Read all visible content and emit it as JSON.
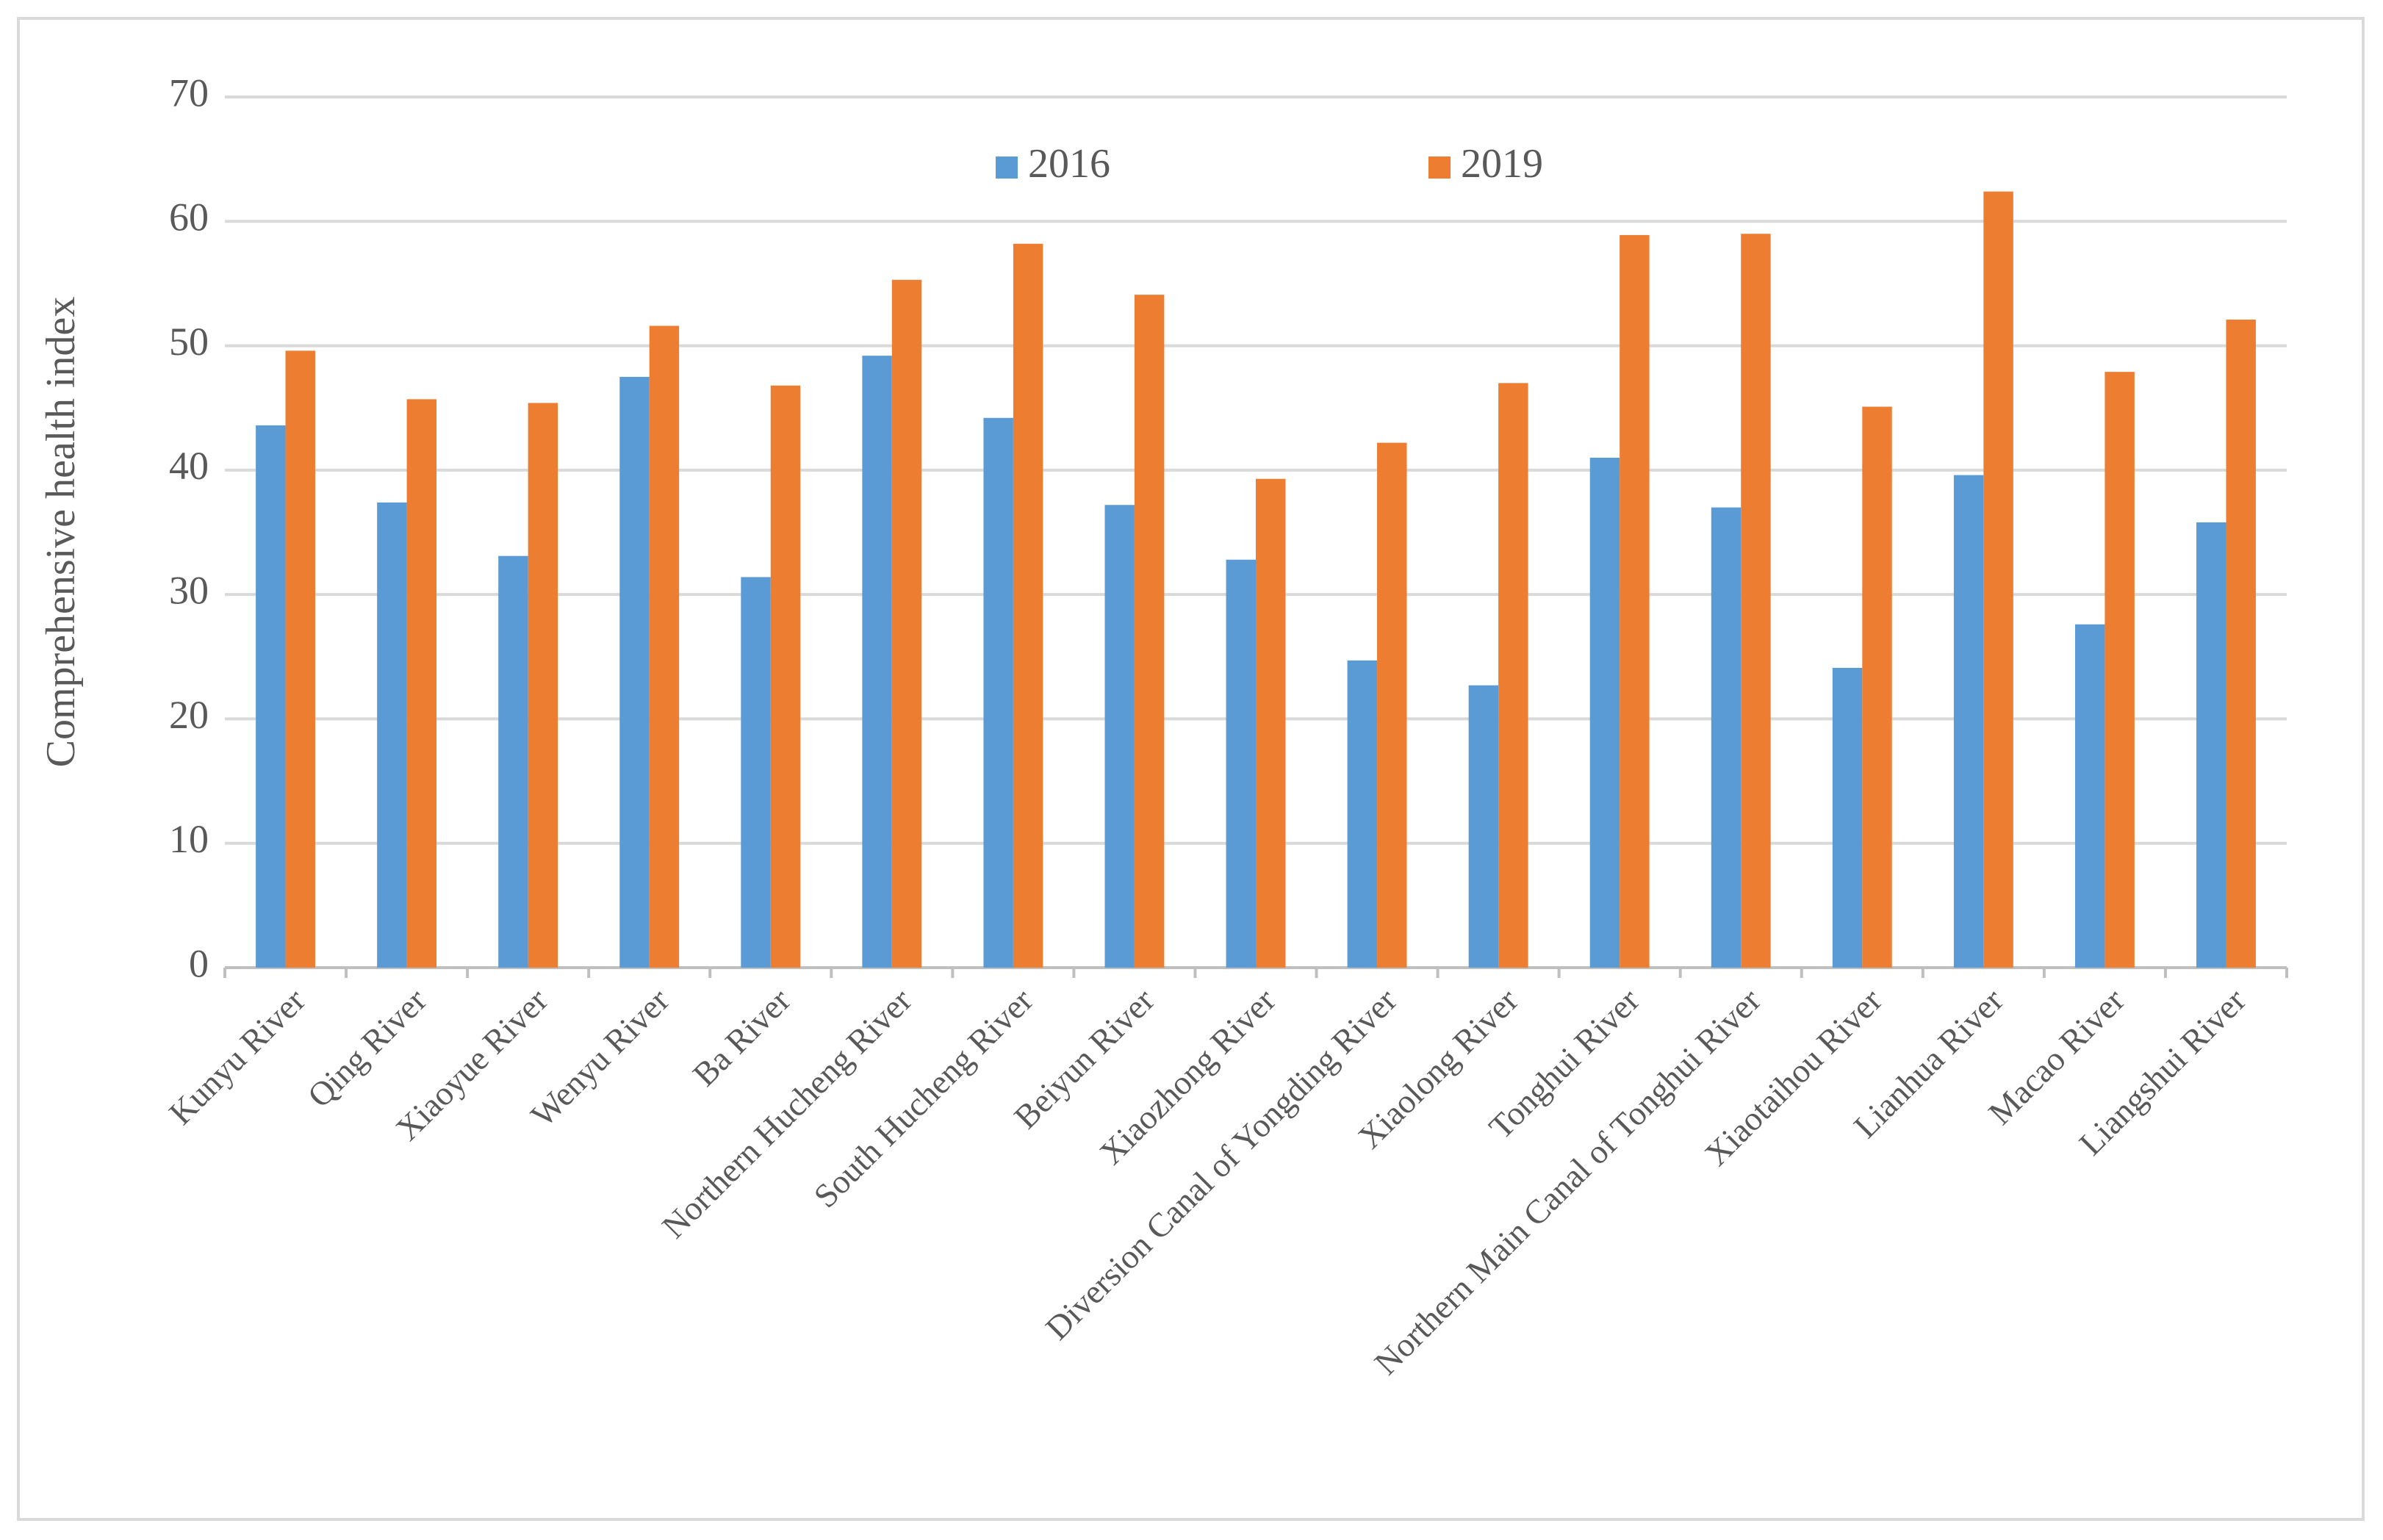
{
  "chart_data": {
    "type": "bar",
    "y_label": "Comprehensive health index",
    "categories": [
      "Kunyu River",
      "Qing River",
      "Xiaoyue River",
      "Wenyu River",
      "Ba River",
      "Northern Hucheng River",
      "South Hucheng River",
      "Beiyun River",
      "Xiaozhong River",
      "Diversion Canal of Yongding River",
      "Xiaolong River",
      "Tonghui River",
      "Northern Main Canal of Tonghui River",
      "Xiaotaihou River",
      "Lianhua River",
      "Macao River",
      "Liangshui River"
    ],
    "series": [
      {
        "name": "2016",
        "color": "#5b9bd5",
        "values": [
          43.6,
          37.4,
          33.1,
          47.5,
          31.4,
          49.2,
          44.2,
          37.2,
          32.8,
          24.7,
          22.7,
          41.0,
          37.0,
          24.1,
          39.6,
          27.6,
          35.8
        ]
      },
      {
        "name": "2019",
        "color": "#ed7d31",
        "values": [
          49.6,
          45.7,
          45.4,
          51.6,
          46.8,
          55.3,
          58.2,
          54.1,
          39.3,
          42.2,
          47.0,
          58.9,
          59.0,
          45.1,
          62.4,
          47.9,
          52.1
        ]
      }
    ],
    "ylim": [
      0,
      70
    ],
    "yticks": [
      0,
      10,
      20,
      30,
      40,
      50,
      60,
      70
    ],
    "grid": true,
    "legend": "top"
  }
}
